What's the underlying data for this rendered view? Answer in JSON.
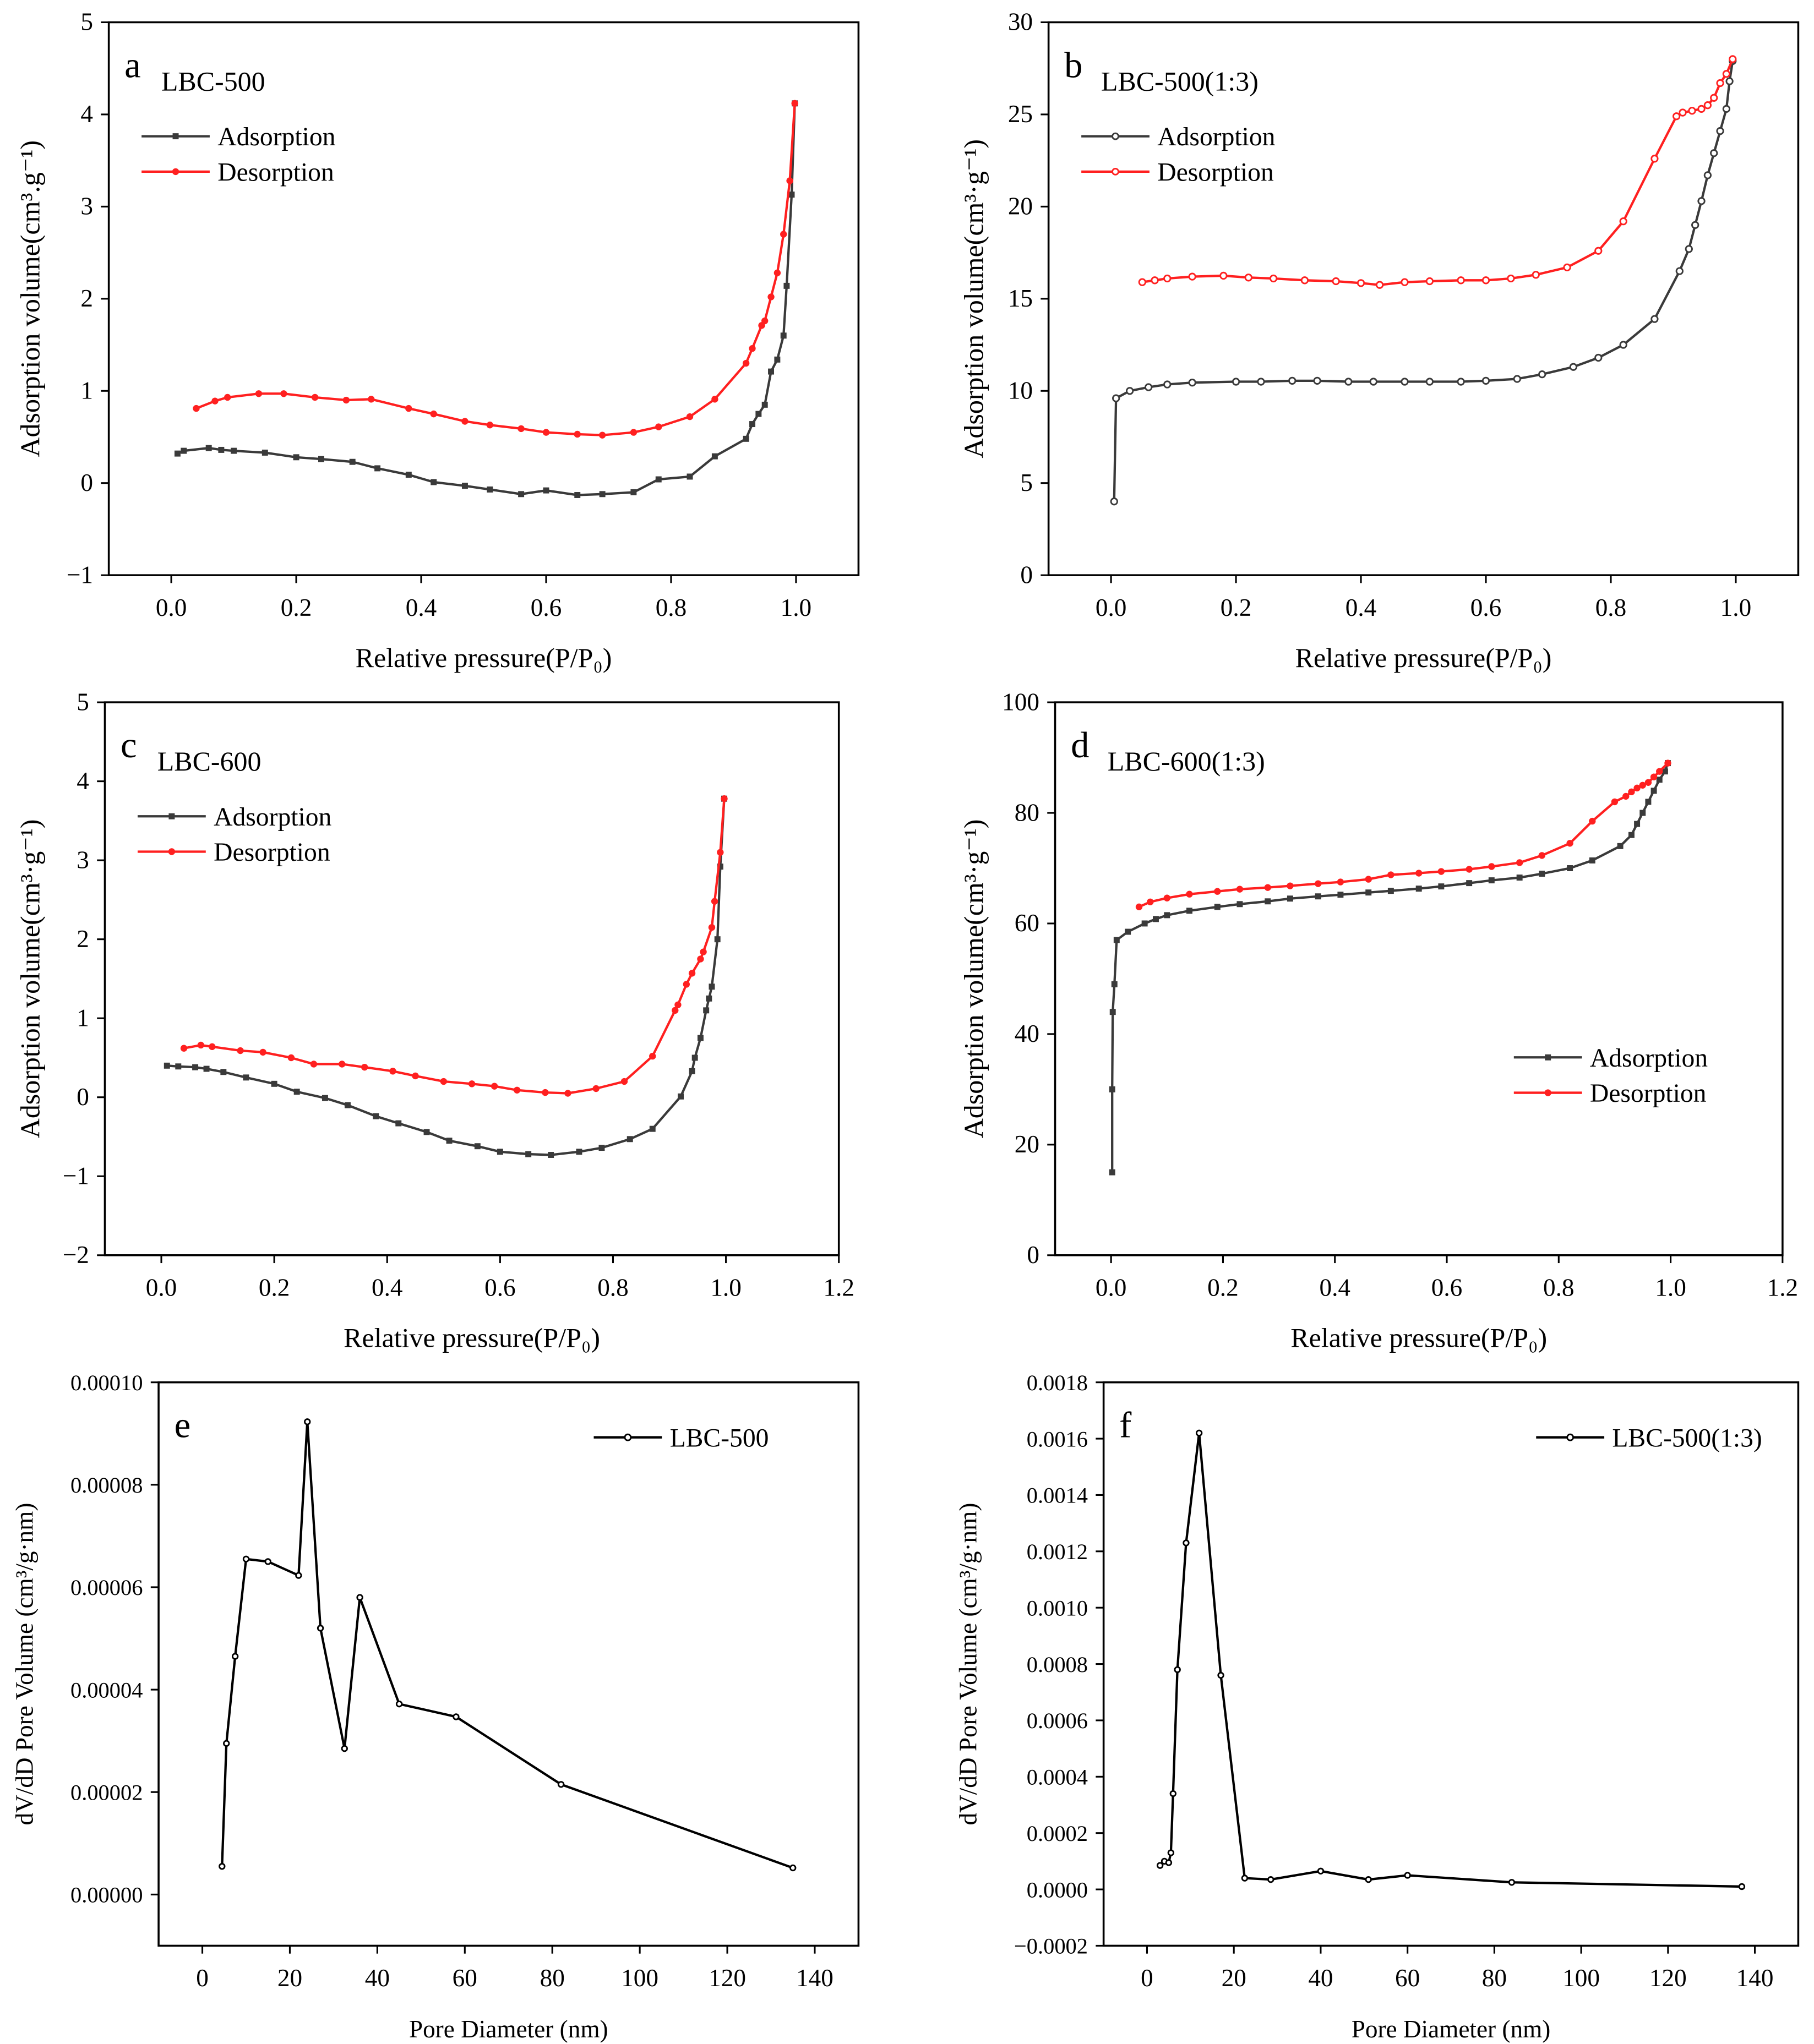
{
  "colors": {
    "adsorption": "#3a3a3a",
    "desorption": "#ff2020",
    "line": "#000000"
  },
  "chart_data": [
    {
      "type": "line",
      "panel": "a",
      "title": "LBC-500",
      "xlabel": "Relative pressure(P/P₀)",
      "ylabel": "Adsorption volume(cm³.g⁻¹)",
      "xlim": [
        -0.1,
        1.1
      ],
      "ylim": [
        -1,
        5
      ],
      "xticks": [
        0,
        0.2,
        0.4,
        0.6,
        0.8,
        1.0
      ],
      "xtick_labels": [
        "0.0",
        "0.2",
        "0.4",
        "0.6",
        "0.8",
        "1.0"
      ],
      "yticks": [
        -1,
        0,
        1,
        2,
        3,
        4,
        5
      ],
      "ytick_labels": [
        "−1",
        "0",
        "1",
        "2",
        "3",
        "4",
        "5"
      ],
      "legend": "top-left",
      "series": [
        {
          "name": "Adsorption",
          "color_key": "adsorption",
          "marker": "square",
          "x": [
            0.01,
            0.02,
            0.06,
            0.08,
            0.1,
            0.15,
            0.2,
            0.24,
            0.29,
            0.33,
            0.38,
            0.42,
            0.47,
            0.51,
            0.56,
            0.6,
            0.65,
            0.69,
            0.74,
            0.78,
            0.83,
            0.87,
            0.92,
            0.93,
            0.94,
            0.95,
            0.96,
            0.97,
            0.98,
            0.985,
            0.993,
            0.998
          ],
          "y": [
            0.32,
            0.35,
            0.38,
            0.36,
            0.35,
            0.33,
            0.28,
            0.26,
            0.23,
            0.16,
            0.09,
            0.01,
            -0.03,
            -0.07,
            -0.12,
            -0.08,
            -0.13,
            -0.12,
            -0.1,
            0.04,
            0.07,
            0.29,
            0.48,
            0.64,
            0.75,
            0.85,
            1.21,
            1.34,
            1.6,
            2.14,
            3.13,
            4.12
          ]
        },
        {
          "name": "Desorption",
          "color_key": "desorption",
          "marker": "circle",
          "x": [
            0.998,
            0.99,
            0.98,
            0.97,
            0.96,
            0.95,
            0.945,
            0.93,
            0.92,
            0.87,
            0.83,
            0.78,
            0.74,
            0.69,
            0.65,
            0.6,
            0.56,
            0.51,
            0.47,
            0.42,
            0.38,
            0.32,
            0.28,
            0.23,
            0.18,
            0.14,
            0.09,
            0.07,
            0.04
          ],
          "y": [
            4.12,
            3.28,
            2.7,
            2.28,
            2.02,
            1.76,
            1.71,
            1.46,
            1.3,
            0.91,
            0.72,
            0.61,
            0.55,
            0.52,
            0.53,
            0.55,
            0.59,
            0.63,
            0.67,
            0.75,
            0.81,
            0.91,
            0.9,
            0.93,
            0.97,
            0.97,
            0.93,
            0.89,
            0.81
          ]
        }
      ]
    },
    {
      "type": "line",
      "panel": "b",
      "title": "LBC-500(1:3)",
      "xlabel": "Relative pressure(P/P₀)",
      "ylabel": "Adsorption volume(cm³·g⁻¹)",
      "xlim": [
        -0.1,
        1.1
      ],
      "ylim": [
        0,
        30
      ],
      "xticks": [
        0,
        0.2,
        0.4,
        0.6,
        0.8,
        1.0
      ],
      "xtick_labels": [
        "0.0",
        "0.2",
        "0.4",
        "0.6",
        "0.8",
        "1.0"
      ],
      "yticks": [
        0,
        5,
        10,
        15,
        20,
        25,
        30
      ],
      "ytick_labels": [
        "0",
        "5",
        "10",
        "15",
        "20",
        "25",
        "30"
      ],
      "legend": "top-left",
      "series": [
        {
          "name": "Adsorption",
          "color_key": "adsorption",
          "marker": "hollow-circle",
          "x": [
            0.005,
            0.008,
            0.03,
            0.06,
            0.09,
            0.13,
            0.2,
            0.24,
            0.29,
            0.33,
            0.38,
            0.42,
            0.47,
            0.51,
            0.56,
            0.6,
            0.65,
            0.69,
            0.74,
            0.78,
            0.82,
            0.87,
            0.91,
            0.925,
            0.935,
            0.945,
            0.955,
            0.965,
            0.975,
            0.985,
            0.99,
            0.995
          ],
          "y": [
            4,
            9.6,
            10.0,
            10.2,
            10.35,
            10.45,
            10.5,
            10.5,
            10.55,
            10.55,
            10.5,
            10.5,
            10.5,
            10.5,
            10.5,
            10.55,
            10.65,
            10.9,
            11.3,
            11.8,
            12.5,
            13.9,
            16.5,
            17.7,
            19,
            20.3,
            21.7,
            22.9,
            24.1,
            25.3,
            26.8,
            27.9
          ]
        },
        {
          "name": "Desorption",
          "color_key": "desorption",
          "marker": "hollow-circle",
          "x": [
            0.995,
            0.985,
            0.975,
            0.965,
            0.955,
            0.945,
            0.93,
            0.915,
            0.905,
            0.87,
            0.82,
            0.78,
            0.73,
            0.68,
            0.64,
            0.6,
            0.56,
            0.51,
            0.47,
            0.43,
            0.4,
            0.36,
            0.31,
            0.26,
            0.22,
            0.18,
            0.13,
            0.09,
            0.07,
            0.05
          ],
          "y": [
            28,
            27.2,
            26.7,
            25.9,
            25.5,
            25.3,
            25.2,
            25.1,
            24.9,
            22.6,
            19.2,
            17.6,
            16.7,
            16.3,
            16.1,
            16.0,
            16.0,
            15.95,
            15.9,
            15.75,
            15.85,
            15.95,
            16.0,
            16.1,
            16.15,
            16.25,
            16.2,
            16.1,
            16.0,
            15.9
          ]
        }
      ]
    },
    {
      "type": "line",
      "panel": "c",
      "title": "LBC-600",
      "xlabel": "Relative pressure(P/P₀)",
      "ylabel": "Adsorption volume(cm³·g⁻¹)",
      "xlim": [
        -0.1,
        1.2
      ],
      "ylim": [
        -2,
        5
      ],
      "xticks": [
        0,
        0.2,
        0.4,
        0.6,
        0.8,
        1.0,
        1.2
      ],
      "xtick_labels": [
        "0.0",
        "0.2",
        "0.4",
        "0.6",
        "0.8",
        "1.0",
        "1.2"
      ],
      "yticks": [
        -2,
        -1,
        0,
        1,
        2,
        3,
        4,
        5
      ],
      "ytick_labels": [
        "−2",
        "−1",
        "0",
        "1",
        "2",
        "3",
        "4",
        "5"
      ],
      "legend": "top-left",
      "series": [
        {
          "name": "Adsorption",
          "color_key": "adsorption",
          "marker": "square",
          "x": [
            0.01,
            0.03,
            0.06,
            0.08,
            0.11,
            0.15,
            0.2,
            0.24,
            0.29,
            0.33,
            0.38,
            0.42,
            0.47,
            0.51,
            0.56,
            0.6,
            0.65,
            0.69,
            0.74,
            0.78,
            0.83,
            0.87,
            0.92,
            0.94,
            0.945,
            0.955,
            0.965,
            0.97,
            0.975,
            0.985,
            0.99,
            0.997
          ],
          "y": [
            0.4,
            0.39,
            0.38,
            0.36,
            0.32,
            0.25,
            0.17,
            0.07,
            -0.01,
            -0.1,
            -0.24,
            -0.33,
            -0.44,
            -0.55,
            -0.62,
            -0.69,
            -0.72,
            -0.73,
            -0.69,
            -0.64,
            -0.53,
            -0.4,
            0.01,
            0.33,
            0.5,
            0.75,
            1.1,
            1.25,
            1.4,
            2.0,
            2.92,
            3.78
          ]
        },
        {
          "name": "Desorption",
          "color_key": "desorption",
          "marker": "circle",
          "x": [
            0.997,
            0.99,
            0.98,
            0.975,
            0.96,
            0.955,
            0.94,
            0.93,
            0.915,
            0.91,
            0.87,
            0.82,
            0.77,
            0.72,
            0.68,
            0.63,
            0.59,
            0.55,
            0.5,
            0.45,
            0.41,
            0.36,
            0.32,
            0.27,
            0.23,
            0.18,
            0.14,
            0.09,
            0.07,
            0.04
          ],
          "y": [
            3.78,
            3.1,
            2.48,
            2.15,
            1.84,
            1.75,
            1.57,
            1.43,
            1.17,
            1.1,
            0.52,
            0.2,
            0.11,
            0.05,
            0.06,
            0.09,
            0.14,
            0.17,
            0.2,
            0.27,
            0.33,
            0.38,
            0.42,
            0.42,
            0.5,
            0.57,
            0.59,
            0.64,
            0.66,
            0.62
          ]
        }
      ]
    },
    {
      "type": "line",
      "panel": "d",
      "title": "LBC-600(1:3)",
      "xlabel": "Relative pressure(P/P₀)",
      "ylabel": "Adsorption volume(cm³·g⁻¹)",
      "xlim": [
        -0.1,
        1.2
      ],
      "ylim": [
        0,
        100
      ],
      "xticks": [
        0,
        0.2,
        0.4,
        0.6,
        0.8,
        1.0,
        1.2
      ],
      "xtick_labels": [
        "0.0",
        "0.2",
        "0.4",
        "0.6",
        "0.8",
        "1.0",
        "1.2"
      ],
      "yticks": [
        0,
        20,
        40,
        60,
        80,
        100
      ],
      "ytick_labels": [
        "0",
        "20",
        "40",
        "60",
        "80",
        "100"
      ],
      "legend": "lower-right",
      "series": [
        {
          "name": "Adsorption",
          "color_key": "adsorption",
          "marker": "square",
          "x": [
            0.002,
            0.002,
            0.003,
            0.006,
            0.01,
            0.03,
            0.06,
            0.08,
            0.1,
            0.14,
            0.19,
            0.23,
            0.28,
            0.32,
            0.37,
            0.41,
            0.46,
            0.5,
            0.55,
            0.59,
            0.64,
            0.68,
            0.73,
            0.77,
            0.82,
            0.86,
            0.91,
            0.93,
            0.94,
            0.95,
            0.96,
            0.97,
            0.98,
            0.99,
            0.995
          ],
          "y": [
            15,
            30,
            44,
            49,
            57,
            58.5,
            60,
            60.8,
            61.5,
            62.3,
            63,
            63.5,
            64,
            64.5,
            64.9,
            65.2,
            65.6,
            65.9,
            66.3,
            66.7,
            67.3,
            67.8,
            68.3,
            69,
            70,
            71.4,
            74,
            76,
            78,
            80,
            82,
            84,
            86,
            87.5,
            89
          ]
        },
        {
          "name": "Desorption",
          "color_key": "desorption",
          "marker": "circle",
          "x": [
            0.995,
            0.98,
            0.97,
            0.96,
            0.95,
            0.94,
            0.93,
            0.92,
            0.9,
            0.86,
            0.82,
            0.77,
            0.73,
            0.68,
            0.64,
            0.59,
            0.55,
            0.5,
            0.46,
            0.41,
            0.37,
            0.32,
            0.28,
            0.23,
            0.19,
            0.14,
            0.1,
            0.07,
            0.05
          ],
          "y": [
            89,
            87.5,
            86.5,
            85.5,
            85,
            84.5,
            83.8,
            83,
            82,
            78.5,
            74.5,
            72.3,
            71,
            70.3,
            69.8,
            69.4,
            69.1,
            68.8,
            68,
            67.5,
            67.2,
            66.8,
            66.5,
            66.2,
            65.8,
            65.3,
            64.6,
            63.9,
            63
          ]
        }
      ]
    },
    {
      "type": "line",
      "panel": "e",
      "title": "",
      "xlabel": "Pore Diameter (nm)",
      "ylabel": "dV/dD Pore Volume (cm³/g·nm)",
      "xlim": [
        -10,
        150
      ],
      "ylim": [
        -1e-05,
        0.0001
      ],
      "xticks": [
        0,
        20,
        40,
        60,
        80,
        100,
        120,
        140
      ],
      "xtick_labels": [
        "0",
        "20",
        "40",
        "60",
        "80",
        "100",
        "120",
        "140"
      ],
      "yticks": [
        0,
        2e-05,
        4e-05,
        6e-05,
        8e-05,
        0.0001
      ],
      "ytick_labels": [
        "0.00000",
        "0.00002",
        "0.00004",
        "0.00006",
        "0.00008",
        "0.00010"
      ],
      "legend": "top-right",
      "series": [
        {
          "name": "LBC-500",
          "color_key": "line",
          "marker": "small-circle",
          "x": [
            4.5,
            5.5,
            7.5,
            10,
            15,
            22,
            24,
            27,
            32.5,
            36,
            45,
            58,
            82,
            135
          ],
          "y": [
            5.5e-06,
            2.95e-05,
            4.65e-05,
            6.55e-05,
            6.5e-05,
            6.23e-05,
            9.23e-05,
            5.2e-05,
            2.85e-05,
            5.8e-05,
            3.72e-05,
            3.47e-05,
            2.15e-05,
            5.2e-06
          ]
        }
      ]
    },
    {
      "type": "line",
      "panel": "f",
      "title": "",
      "xlabel": "Pore Diameter (nm)",
      "ylabel": "dV/dD Pore Volume (cm³/g·nm)",
      "xlim": [
        -10,
        150
      ],
      "ylim": [
        -0.0002,
        0.0018
      ],
      "xticks": [
        0,
        20,
        40,
        60,
        80,
        100,
        120,
        140
      ],
      "xtick_labels": [
        "0",
        "20",
        "40",
        "60",
        "80",
        "100",
        "120",
        "140"
      ],
      "yticks": [
        -0.0002,
        0,
        0.0002,
        0.0004,
        0.0006,
        0.0008,
        0.001,
        0.0012,
        0.0014,
        0.0016,
        0.0018
      ],
      "ytick_labels": [
        "−0.0002",
        "0.0000",
        "0.0002",
        "0.0004",
        "0.0006",
        "0.0008",
        "0.0010",
        "0.0012",
        "0.0014",
        "0.0016",
        "0.0018"
      ],
      "legend": "top-right",
      "series": [
        {
          "name": "LBC-500(1:3)",
          "color_key": "line",
          "marker": "small-circle",
          "x": [
            3,
            4,
            5,
            5.5,
            6,
            7,
            9,
            12,
            17,
            22.5,
            28.5,
            40,
            51,
            60,
            84,
            137
          ],
          "y": [
            8.5e-05,
            0.0001,
            9.5e-05,
            0.00013,
            0.00034,
            0.00078,
            0.00123,
            0.00162,
            0.00076,
            4e-05,
            3.5e-05,
            6.5e-05,
            3.5e-05,
            5e-05,
            2.5e-05,
            1e-05
          ]
        }
      ]
    }
  ]
}
